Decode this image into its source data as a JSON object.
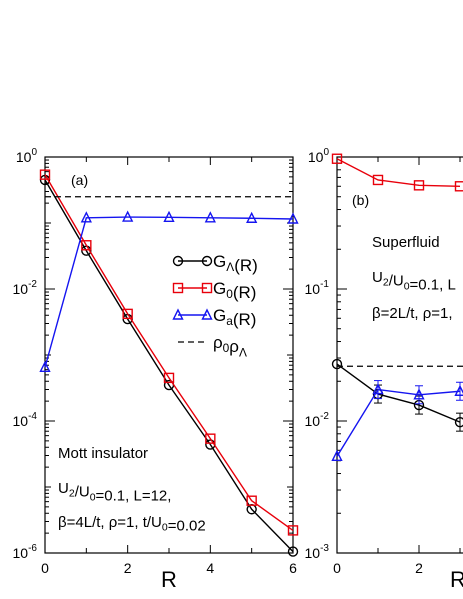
{
  "chart_data": [
    {
      "panel": "(a)",
      "type": "line",
      "y_scale": "log",
      "xlim": [
        0,
        6
      ],
      "ylim": [
        1e-06,
        1
      ],
      "xticks": [
        0,
        2,
        4,
        6
      ],
      "xlabel": "R",
      "ylabel": "",
      "grid": false,
      "legend_placement": "center-right",
      "annotation_lines": [
        "Mott insulator",
        "U2/U0=0.1, L=12,",
        "β=4L/t, ρ=1, t/U0=0.02"
      ],
      "series": [
        {
          "name": "GΛ(R)",
          "color": "#000000",
          "marker": "circle",
          "x": [
            0,
            1,
            2,
            3,
            4,
            5,
            6
          ],
          "y": [
            0.45,
            0.038,
            0.0035,
            0.00035,
            4.4e-05,
            4.6e-06,
            1.05e-06
          ]
        },
        {
          "name": "G0(R)",
          "color": "#e8000b",
          "marker": "square",
          "x": [
            0,
            1,
            2,
            3,
            4,
            5,
            6
          ],
          "y": [
            0.54,
            0.046,
            0.0042,
            0.00045,
            5.4e-05,
            6.2e-06,
            2.2e-06
          ]
        },
        {
          "name": "Ga(R)",
          "color": "#1515f0",
          "marker": "triangle",
          "x": [
            0,
            1,
            2,
            3,
            4,
            5,
            6
          ],
          "y": [
            0.00065,
            0.12,
            0.123,
            0.122,
            0.12,
            0.118,
            0.115
          ]
        },
        {
          "name": "ρ0ρΛ",
          "color": "#000000",
          "style": "dashed",
          "constant": 0.25
        }
      ]
    },
    {
      "panel": "(b)",
      "type": "line",
      "y_scale": "log",
      "xlim": [
        0,
        6
      ],
      "ylim": [
        0.001,
        1
      ],
      "xticks": [
        0,
        2
      ],
      "xlabel": "R",
      "ylabel": "",
      "grid": false,
      "annotation_lines": [
        "Superfluid",
        "U2/U0=0.1, L",
        "β=2L/t, ρ=1,"
      ],
      "series": [
        {
          "name": "G0(R)",
          "color": "#e8000b",
          "marker": "square",
          "x": [
            0,
            1,
            2,
            3
          ],
          "y": [
            0.97,
            0.67,
            0.61,
            0.6
          ]
        },
        {
          "name": "GΛ(R)",
          "color": "#000000",
          "marker": "circle",
          "x": [
            0,
            1,
            2,
            3
          ],
          "y": [
            0.027,
            0.016,
            0.0132,
            0.0098
          ]
        },
        {
          "name": "Ga(R)",
          "color": "#1515f0",
          "marker": "triangle",
          "x": [
            0,
            1,
            2,
            3
          ],
          "y": [
            0.0054,
            0.0173,
            0.0158,
            0.0168
          ]
        },
        {
          "name": "ρ0ρΛ",
          "color": "#000000",
          "style": "dashed",
          "constant": 0.026
        }
      ]
    }
  ]
}
